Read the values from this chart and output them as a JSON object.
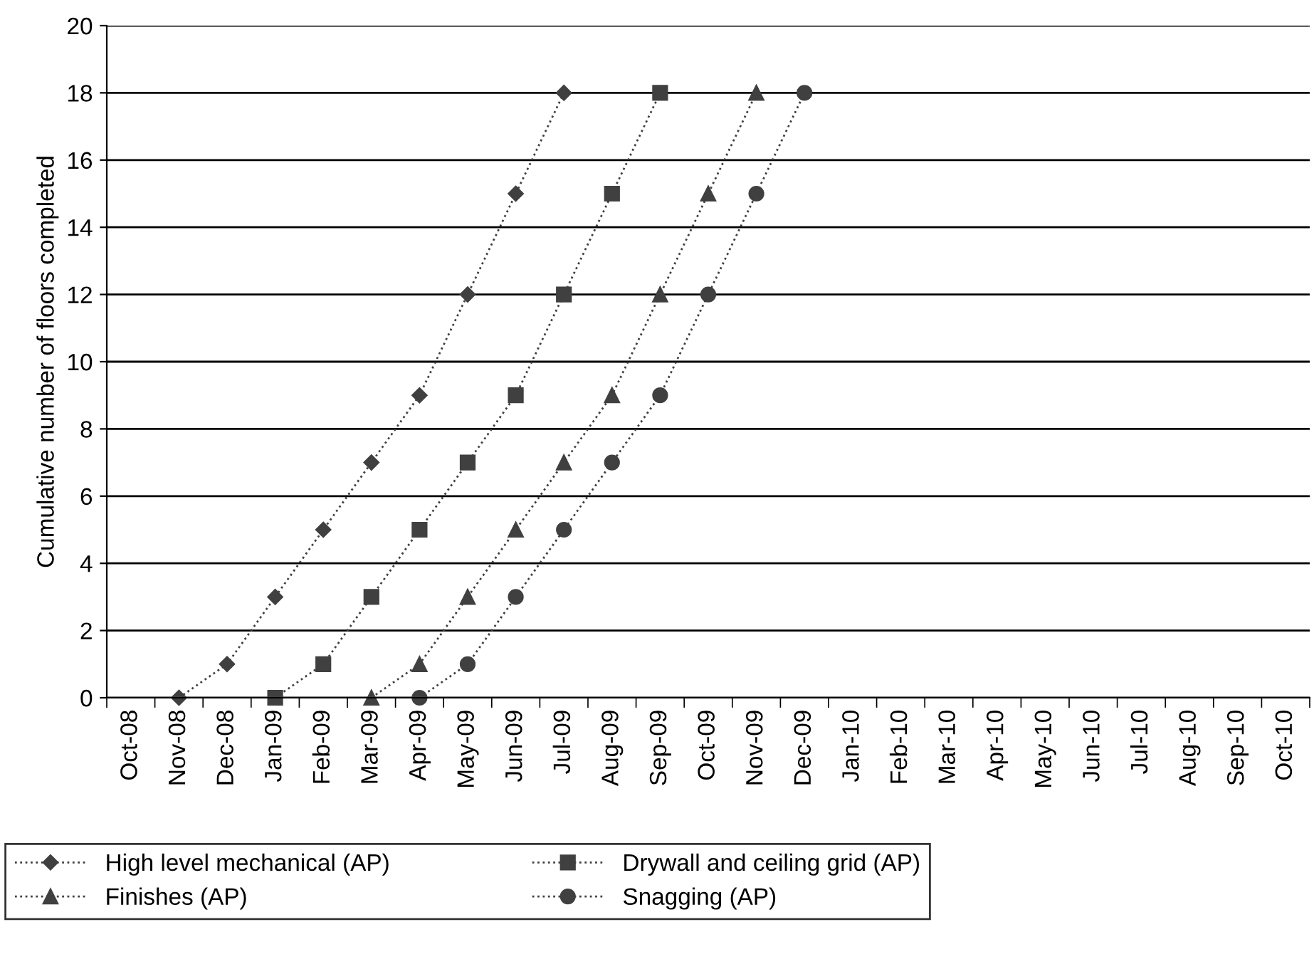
{
  "chart_data": {
    "type": "line",
    "ylabel": "Cumulative number of floors completed",
    "categories": [
      "Oct-08",
      "Nov-08",
      "Dec-08",
      "Jan-09",
      "Feb-09",
      "Mar-09",
      "Apr-09",
      "May-09",
      "Jun-09",
      "Jul-09",
      "Aug-09",
      "Sep-09",
      "Oct-09",
      "Nov-09",
      "Dec-09",
      "Jan-10",
      "Feb-10",
      "Mar-10",
      "Apr-10",
      "May-10",
      "Jun-10",
      "Jul-10",
      "Aug-10",
      "Sep-10",
      "Oct-10"
    ],
    "series": [
      {
        "name": "High level mechanical (AP)",
        "color": "#404040",
        "marker": "diamond",
        "values": [
          null,
          0,
          1,
          3,
          5,
          7,
          9,
          12,
          15,
          18,
          null,
          null,
          null,
          null,
          null,
          null,
          null,
          null,
          null,
          null,
          null,
          null,
          null,
          null,
          null
        ]
      },
      {
        "name": "Drywall and ceiling grid (AP)",
        "color": "#404040",
        "marker": "square",
        "values": [
          null,
          null,
          null,
          0,
          1,
          3,
          5,
          7,
          9,
          12,
          15,
          18,
          null,
          null,
          null,
          null,
          null,
          null,
          null,
          null,
          null,
          null,
          null,
          null,
          null
        ]
      },
      {
        "name": "Finishes (AP)",
        "color": "#404040",
        "marker": "triangle",
        "values": [
          null,
          null,
          null,
          null,
          null,
          0,
          1,
          3,
          5,
          7,
          9,
          12,
          15,
          18,
          null,
          null,
          null,
          null,
          null,
          null,
          null,
          null,
          null,
          null,
          null
        ]
      },
      {
        "name": "Snagging (AP)",
        "color": "#404040",
        "marker": "circle",
        "values": [
          null,
          null,
          null,
          null,
          null,
          null,
          0,
          1,
          3,
          5,
          7,
          9,
          12,
          15,
          18,
          null,
          null,
          null,
          null,
          null,
          null,
          null,
          null,
          null,
          null
        ]
      }
    ],
    "ylim": [
      0,
      20
    ],
    "yticks": [
      0,
      2,
      4,
      6,
      8,
      10,
      12,
      14,
      16,
      18,
      20
    ],
    "grid": "y",
    "legend": "bottom",
    "line_style": "dotted"
  }
}
